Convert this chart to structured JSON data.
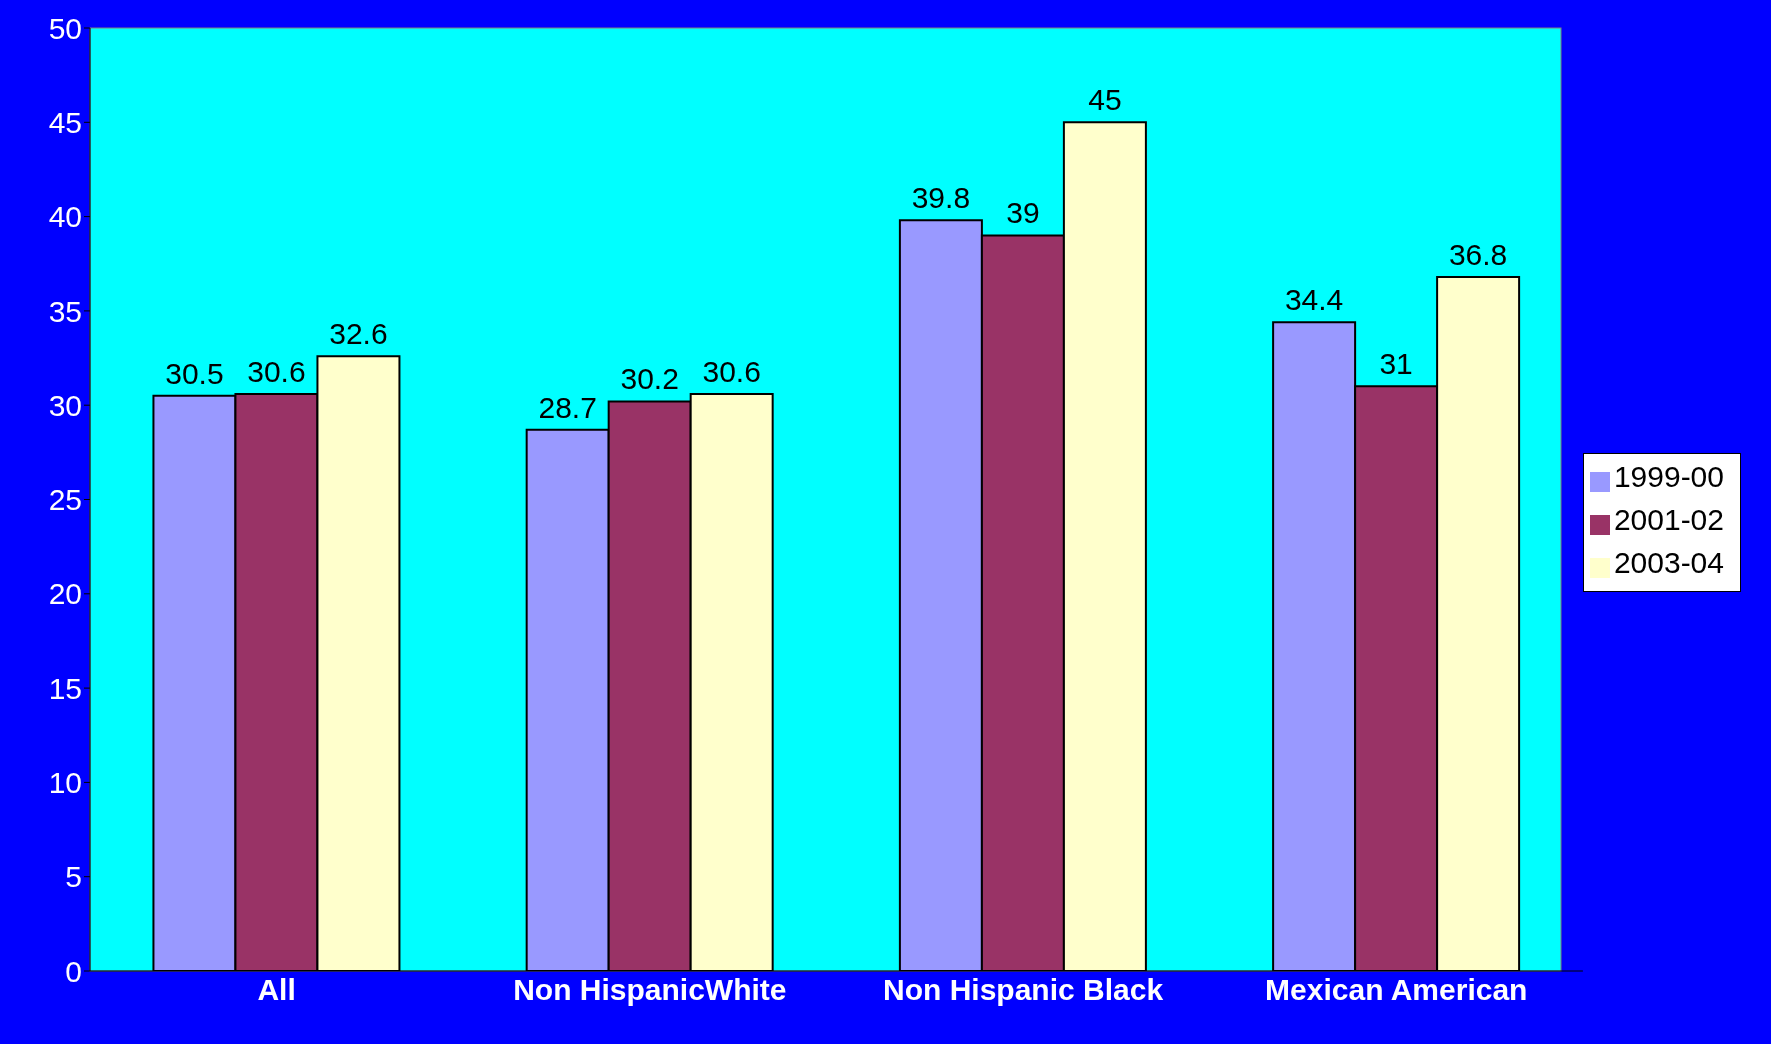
{
  "chart_data": {
    "type": "bar",
    "categories": [
      "All",
      "Non HispanicWhite",
      "Non Hispanic Black",
      "Mexican American"
    ],
    "series": [
      {
        "name": "1999-00",
        "color": "#9999ff",
        "values": [
          30.5,
          28.7,
          39.8,
          34.4
        ]
      },
      {
        "name": "2001-02",
        "color": "#993366",
        "values": [
          30.6,
          30.2,
          39,
          31
        ]
      },
      {
        "name": "2003-04",
        "color": "#ffffcc",
        "values": [
          32.6,
          30.6,
          45,
          36.8
        ]
      }
    ],
    "ylim": [
      0,
      50
    ],
    "yticks": [
      0,
      5,
      10,
      15,
      20,
      25,
      30,
      35,
      40,
      45,
      50
    ],
    "grid": false,
    "legend": "right",
    "data_labels": true
  }
}
